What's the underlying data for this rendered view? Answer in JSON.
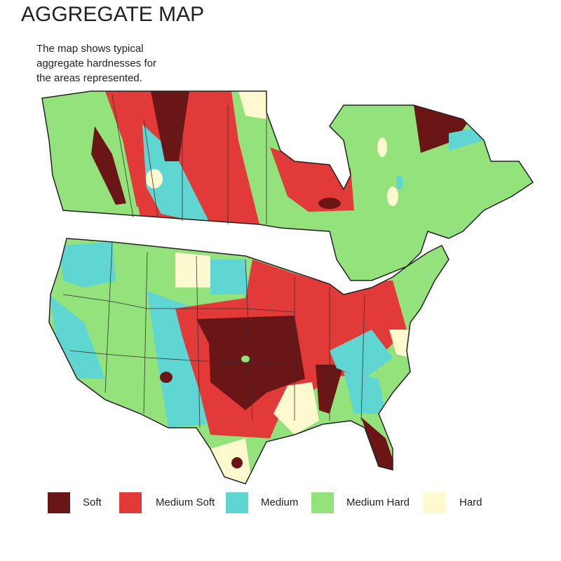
{
  "header": {
    "title": "AGGREGATE MAP",
    "description": [
      "The map shows typical",
      "aggregate  hardnesses for",
      "the areas represented."
    ]
  },
  "legend": {
    "items": [
      {
        "label": "Soft",
        "color": "#6b1616"
      },
      {
        "label": "Medium Soft",
        "color": "#e23a38"
      },
      {
        "label": "Medium",
        "color": "#5fd6d2"
      },
      {
        "label": "Medium Hard",
        "color": "#93e27c"
      },
      {
        "label": "Hard",
        "color": "#fff9cf"
      }
    ]
  }
}
